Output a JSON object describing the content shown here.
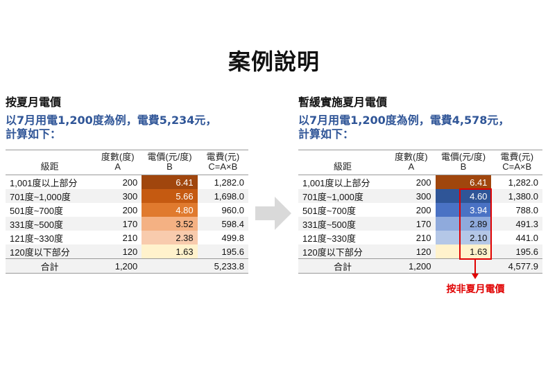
{
  "title": "案例說明",
  "left": {
    "heading": "按夏月電價",
    "description_line1": "以7月用電1,200度為例，電費5,234元，",
    "description_line2": "計算如下：",
    "headers": {
      "tier": "級距",
      "degree": "度數(度)",
      "degree_sub": "A",
      "price": "電價(元/度)",
      "price_sub": "B",
      "fee": "電費(元)",
      "fee_sub": "C=A×B"
    },
    "rows": [
      {
        "tier": "1,001度以上部分",
        "degree": "200",
        "price": "6.41",
        "fee": "1,282.0"
      },
      {
        "tier": "701度~1,000度",
        "degree": "300",
        "price": "5.66",
        "fee": "1,698.0"
      },
      {
        "tier": "501度~700度",
        "degree": "200",
        "price": "4.80",
        "fee": "960.0"
      },
      {
        "tier": "331度~500度",
        "degree": "170",
        "price": "3.52",
        "fee": "598.4"
      },
      {
        "tier": "121度~330度",
        "degree": "210",
        "price": "2.38",
        "fee": "499.8"
      },
      {
        "tier": "120度以下部分",
        "degree": "120",
        "price": "1.63",
        "fee": "195.6"
      }
    ],
    "total": {
      "label": "合計",
      "degree": "1,200",
      "fee": "5,233.8"
    },
    "price_colors": [
      "#a0460d",
      "#c55a11",
      "#e07a2e",
      "#f4b183",
      "#f8cbad",
      "#fff2cc"
    ]
  },
  "right": {
    "heading": "暫緩實施夏月電價",
    "description_line1": "以7月用電1,200度為例，電費4,578元，",
    "description_line2": "計算如下：",
    "headers": {
      "tier": "級距",
      "degree": "度數(度)",
      "degree_sub": "A",
      "price": "電價(元/度)",
      "price_sub": "B",
      "fee": "電費(元)",
      "fee_sub": "C=A×B"
    },
    "rows": [
      {
        "tier": "1,001度以上部分",
        "degree": "200",
        "price": "6.41",
        "fee": "1,282.0"
      },
      {
        "tier": "701度~1,000度",
        "degree": "300",
        "price": "4.60",
        "fee": "1,380.0"
      },
      {
        "tier": "501度~700度",
        "degree": "200",
        "price": "3.94",
        "fee": "788.0"
      },
      {
        "tier": "331度~500度",
        "degree": "170",
        "price": "2.89",
        "fee": "491.3"
      },
      {
        "tier": "121度~330度",
        "degree": "210",
        "price": "2.10",
        "fee": "441.0"
      },
      {
        "tier": "120度以下部分",
        "degree": "120",
        "price": "1.63",
        "fee": "195.6"
      }
    ],
    "total": {
      "label": "合計",
      "degree": "1,200",
      "fee": "4,577.9"
    },
    "price_colors": [
      "#a0460d",
      "#2f5597",
      "#4a72c4",
      "#8faadc",
      "#b4c7e7",
      "#fff2cc"
    ],
    "callout": "按非夏月電價"
  },
  "colors": {
    "accent_blue": "#2f5597",
    "highlight_red": "#e00000",
    "arrow_gray": "#d9d9d9"
  },
  "icons": {
    "arrow": "right-arrow-icon",
    "callout_arrow": "down-arrow-icon"
  }
}
